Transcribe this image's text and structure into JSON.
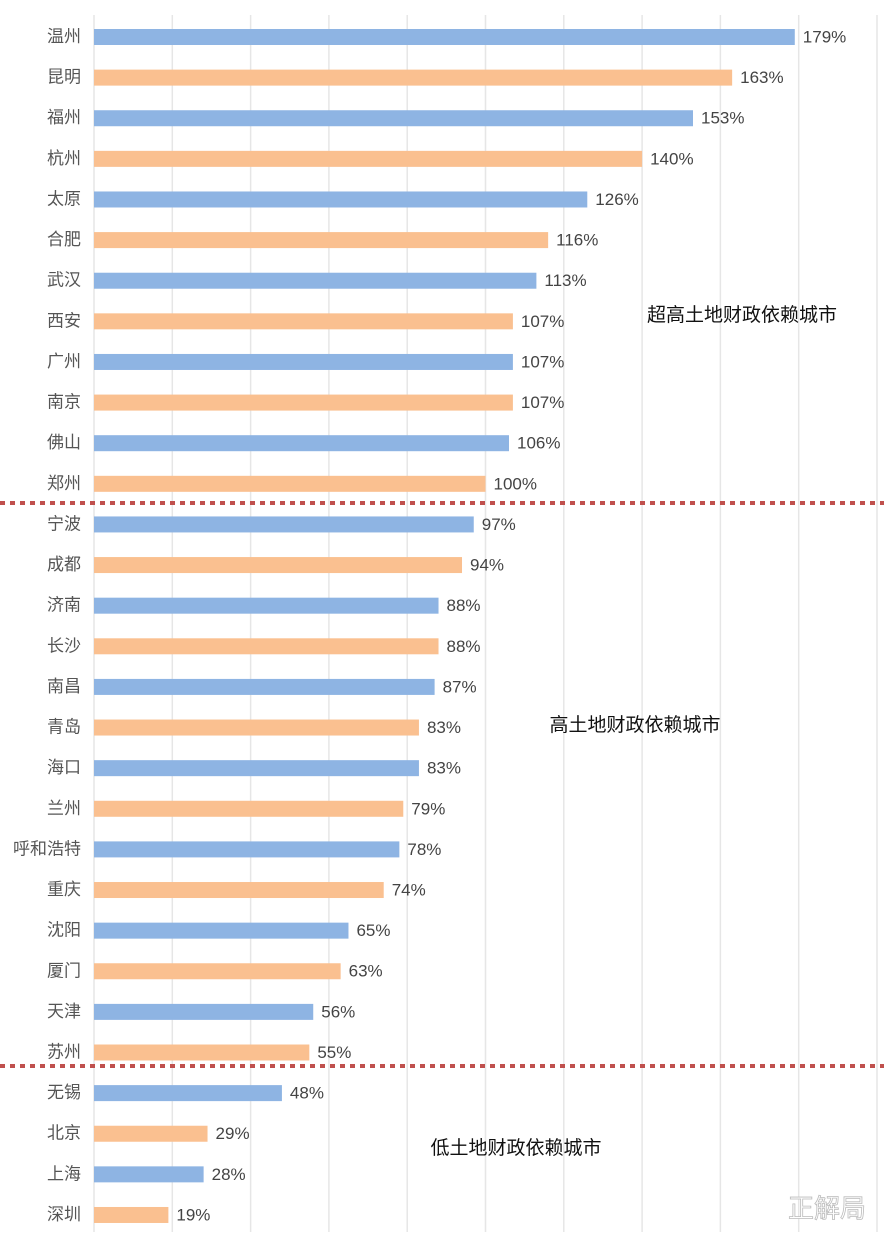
{
  "chart_data": {
    "type": "hbar",
    "categories": [
      "温州",
      "昆明",
      "福州",
      "杭州",
      "太原",
      "合肥",
      "武汉",
      "西安",
      "广州",
      "南京",
      "佛山",
      "郑州",
      "宁波",
      "成都",
      "济南",
      "长沙",
      "南昌",
      "青岛",
      "海口",
      "兰州",
      "呼和浩特",
      "重庆",
      "沈阳",
      "厦门",
      "天津",
      "苏州",
      "无锡",
      "北京",
      "上海",
      "深圳"
    ],
    "values": [
      179,
      163,
      153,
      140,
      126,
      116,
      113,
      107,
      107,
      107,
      106,
      100,
      97,
      94,
      88,
      88,
      87,
      83,
      83,
      79,
      78,
      74,
      65,
      63,
      56,
      55,
      48,
      29,
      28,
      19
    ],
    "value_labels": [
      "179%",
      "163%",
      "153%",
      "140%",
      "126%",
      "116%",
      "113%",
      "107%",
      "107%",
      "107%",
      "106%",
      "100%",
      "97%",
      "94%",
      "88%",
      "88%",
      "87%",
      "83%",
      "83%",
      "79%",
      "78%",
      "74%",
      "65%",
      "63%",
      "56%",
      "55%",
      "48%",
      "29%",
      "28%",
      "19%"
    ],
    "colors": [
      "#8eb4e3",
      "#fac090"
    ],
    "xlim": [
      0,
      200
    ],
    "xticks": [
      0,
      20,
      40,
      60,
      80,
      100,
      120,
      140,
      160,
      180,
      200
    ],
    "grid": true,
    "annotations": [
      "超高土地财政依赖城市",
      "高土地财政依赖城市",
      "低土地财政依赖城市"
    ],
    "watermark": "正解局"
  }
}
